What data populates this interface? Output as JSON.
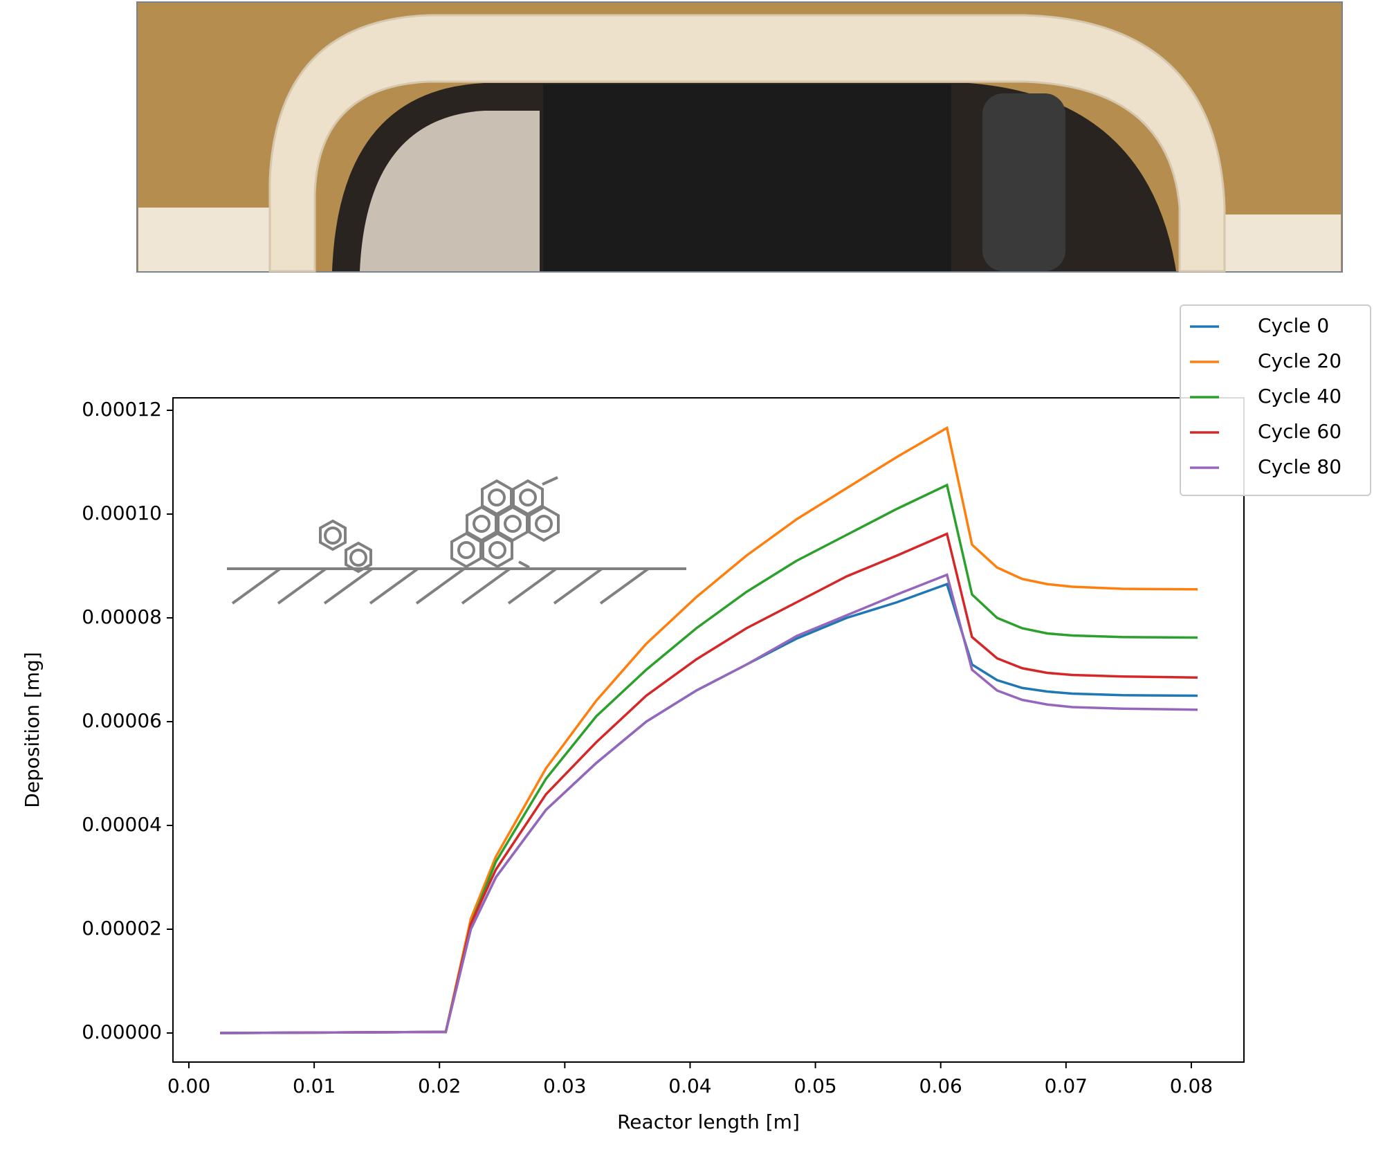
{
  "chart_data": {
    "type": "line",
    "xlabel": "Reactor length [m]",
    "ylabel": "Deposition [mg]",
    "x": [
      0.0025,
      0.0205,
      0.0225,
      0.0245,
      0.0285,
      0.0325,
      0.0365,
      0.0405,
      0.0445,
      0.0485,
      0.0525,
      0.0565,
      0.0605,
      0.0625,
      0.0645,
      0.0665,
      0.0685,
      0.0705,
      0.0745,
      0.0805
    ],
    "series": [
      {
        "name": "Cycle 0",
        "color": "#1f77b4",
        "values": [
          0,
          2e-07,
          2e-05,
          3e-05,
          4.3e-05,
          5.2e-05,
          6e-05,
          6.6e-05,
          7.1e-05,
          7.6e-05,
          8e-05,
          8.3e-05,
          8.65e-05,
          7.1e-05,
          6.8e-05,
          6.65e-05,
          6.58e-05,
          6.54e-05,
          6.51e-05,
          6.5e-05
        ]
      },
      {
        "name": "Cycle 20",
        "color": "#ff7f0e",
        "values": [
          0,
          2e-07,
          2.2e-05,
          3.4e-05,
          5.1e-05,
          6.4e-05,
          7.5e-05,
          8.4e-05,
          9.2e-05,
          9.9e-05,
          0.000105,
          0.000111,
          0.0001166,
          9.41e-05,
          8.97e-05,
          8.75e-05,
          8.65e-05,
          8.6e-05,
          8.56e-05,
          8.55e-05
        ]
      },
      {
        "name": "Cycle 40",
        "color": "#2ca02c",
        "values": [
          0,
          2e-07,
          2.1e-05,
          3.3e-05,
          4.9e-05,
          6.1e-05,
          7e-05,
          7.8e-05,
          8.5e-05,
          9.1e-05,
          9.6e-05,
          0.000101,
          0.0001056,
          8.45e-05,
          8e-05,
          7.8e-05,
          7.7e-05,
          7.66e-05,
          7.63e-05,
          7.62e-05
        ]
      },
      {
        "name": "Cycle 60",
        "color": "#d62728",
        "values": [
          0,
          2e-07,
          2.1e-05,
          3.15e-05,
          4.6e-05,
          5.6e-05,
          6.5e-05,
          7.2e-05,
          7.8e-05,
          8.3e-05,
          8.8e-05,
          9.2e-05,
          9.62e-05,
          7.63e-05,
          7.22e-05,
          7.03e-05,
          6.94e-05,
          6.9e-05,
          6.87e-05,
          6.85e-05
        ]
      },
      {
        "name": "Cycle 80",
        "color": "#9467bd",
        "values": [
          0,
          2e-07,
          2e-05,
          3e-05,
          4.3e-05,
          5.2e-05,
          6e-05,
          6.6e-05,
          7.1e-05,
          7.65e-05,
          8.05e-05,
          8.45e-05,
          8.83e-05,
          7e-05,
          6.6e-05,
          6.42e-05,
          6.33e-05,
          6.28e-05,
          6.25e-05,
          6.23e-05
        ]
      }
    ],
    "xlim": [
      -0.00127,
      0.0842
    ],
    "ylim": [
      -5.6e-06,
      0.0001224
    ],
    "xticks": [
      {
        "value": 0,
        "label": "0.00"
      },
      0.01,
      0.02,
      0.03,
      0.04,
      0.05,
      0.06,
      0.07,
      0.08
    ],
    "yticks": [
      {
        "value": 0,
        "label": "0.00000"
      },
      2e-05,
      4e-05,
      6e-05,
      8e-05,
      {
        "value": 0.0001,
        "label": "0.00010"
      },
      0.00012
    ],
    "grid": false,
    "legend": "upper right outside"
  }
}
